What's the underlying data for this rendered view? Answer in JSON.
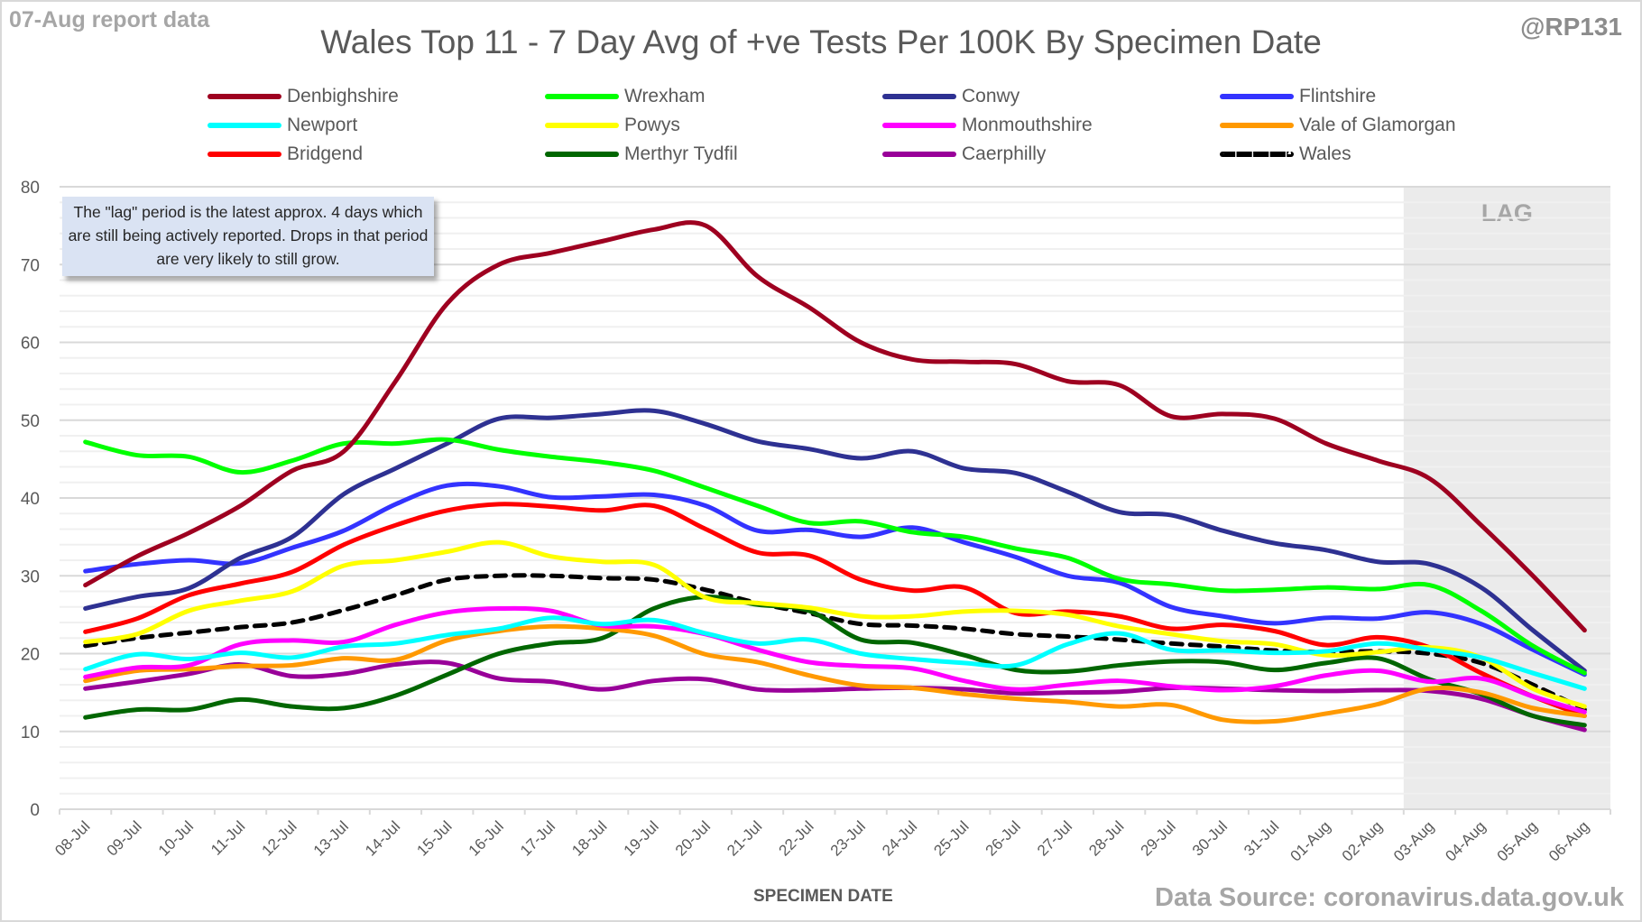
{
  "header": {
    "report_date": "07-Aug report data",
    "handle": "@RP131",
    "source": "Data Source: coronavirus.data.gov.uk"
  },
  "annotation": {
    "text": "The \"lag\" period is the latest approx. 4 days which are still being actively reported.  Drops in that period are very likely to still grow."
  },
  "chart_data": {
    "type": "line",
    "title": "Wales Top 11 - 7 Day Avg of +ve Tests Per 100K By Specimen Date",
    "xlabel": "SPECIMEN DATE",
    "ylabel": "",
    "ylim": [
      0,
      80
    ],
    "yticks": [
      0,
      10,
      20,
      30,
      40,
      50,
      60,
      70,
      80
    ],
    "grid": true,
    "minor_grid_step": 2,
    "legend_position": "top",
    "lag": {
      "label": "LAG",
      "start": "03-Aug",
      "end": "06-Aug",
      "color": "#ebebeb"
    },
    "categories": [
      "08-Jul",
      "09-Jul",
      "10-Jul",
      "11-Jul",
      "12-Jul",
      "13-Jul",
      "14-Jul",
      "15-Jul",
      "16-Jul",
      "17-Jul",
      "18-Jul",
      "19-Jul",
      "20-Jul",
      "21-Jul",
      "22-Jul",
      "23-Jul",
      "24-Jul",
      "25-Jul",
      "26-Jul",
      "27-Jul",
      "28-Jul",
      "29-Jul",
      "30-Jul",
      "31-Jul",
      "01-Aug",
      "02-Aug",
      "03-Aug",
      "04-Aug",
      "05-Aug",
      "06-Aug"
    ],
    "series": [
      {
        "name": "Denbighshire",
        "color": "#9e0020",
        "dashed": false,
        "values": [
          28.8,
          32.5,
          35.5,
          39.0,
          43.5,
          46.0,
          55.0,
          65.0,
          70.0,
          71.5,
          73.0,
          74.5,
          75.0,
          68.5,
          64.5,
          60.0,
          57.8,
          57.5,
          57.2,
          55.0,
          54.5,
          50.5,
          50.8,
          50.2,
          47.0,
          44.8,
          42.5,
          36.5,
          30.0,
          23.0
        ]
      },
      {
        "name": "Wrexham",
        "color": "#00ff00",
        "dashed": false,
        "values": [
          47.2,
          45.5,
          45.3,
          43.3,
          44.8,
          47.0,
          47.0,
          47.5,
          46.2,
          45.3,
          44.6,
          43.5,
          41.3,
          39.0,
          36.8,
          37.0,
          35.6,
          35.0,
          33.5,
          32.3,
          29.6,
          28.9,
          28.1,
          28.2,
          28.5,
          28.3,
          28.8,
          25.5,
          21.0,
          17.5
        ]
      },
      {
        "name": "Conwy",
        "color": "#2e3192",
        "dashed": false,
        "values": [
          25.8,
          27.3,
          28.4,
          32.3,
          35.0,
          40.5,
          43.8,
          47.0,
          50.2,
          50.3,
          50.8,
          51.2,
          49.5,
          47.3,
          46.3,
          45.1,
          46.0,
          43.8,
          43.2,
          40.8,
          38.2,
          37.8,
          35.8,
          34.2,
          33.3,
          31.8,
          31.5,
          28.5,
          23.0,
          17.8
        ]
      },
      {
        "name": "Flintshire",
        "color": "#3333ff",
        "dashed": false,
        "values": [
          30.6,
          31.5,
          32.0,
          31.6,
          33.6,
          35.8,
          39.2,
          41.6,
          41.5,
          40.1,
          40.2,
          40.4,
          39.0,
          35.8,
          35.9,
          35.0,
          36.2,
          34.3,
          32.4,
          30.0,
          29.1,
          26.0,
          24.8,
          23.9,
          24.6,
          24.5,
          25.3,
          23.8,
          20.5,
          17.3
        ]
      },
      {
        "name": "Newport",
        "color": "#00ffff",
        "dashed": false,
        "values": [
          18.0,
          19.9,
          19.3,
          20.1,
          19.5,
          20.9,
          21.3,
          22.4,
          23.2,
          24.6,
          23.8,
          24.3,
          22.6,
          21.3,
          21.8,
          20.0,
          19.3,
          18.8,
          18.5,
          21.2,
          22.6,
          20.5,
          20.4,
          20.1,
          20.3,
          21.3,
          20.5,
          19.5,
          17.5,
          15.5
        ]
      },
      {
        "name": "Powys",
        "color": "#ffff00",
        "dashed": false,
        "values": [
          21.5,
          22.5,
          25.5,
          26.8,
          28.0,
          31.3,
          32.0,
          33.1,
          34.3,
          32.5,
          31.8,
          31.4,
          27.2,
          26.5,
          25.9,
          24.8,
          24.8,
          25.4,
          25.5,
          25.0,
          23.5,
          22.5,
          21.6,
          21.2,
          19.8,
          20.2,
          20.8,
          19.5,
          15.5,
          13.2
        ]
      },
      {
        "name": "Monmouthshire",
        "color": "#ff00ff",
        "dashed": false,
        "values": [
          17.0,
          18.2,
          18.5,
          21.2,
          21.7,
          21.5,
          23.7,
          25.3,
          25.8,
          25.5,
          23.6,
          23.5,
          22.5,
          20.5,
          18.9,
          18.4,
          18.1,
          16.5,
          15.4,
          16.0,
          16.5,
          15.8,
          15.3,
          15.8,
          17.2,
          17.8,
          16.4,
          16.8,
          14.5,
          12.5
        ]
      },
      {
        "name": "Vale of Glamorgan",
        "color": "#ff9900",
        "dashed": false,
        "values": [
          16.5,
          17.8,
          18.0,
          18.4,
          18.5,
          19.4,
          19.2,
          21.7,
          22.9,
          23.5,
          23.2,
          22.3,
          19.9,
          18.9,
          17.2,
          15.9,
          15.6,
          14.8,
          14.2,
          13.8,
          13.2,
          13.4,
          11.5,
          11.3,
          12.3,
          13.5,
          15.5,
          15.0,
          13.0,
          12.0
        ]
      },
      {
        "name": "Bridgend",
        "color": "#ff0000",
        "dashed": false,
        "values": [
          22.8,
          24.5,
          27.5,
          29.0,
          30.5,
          34.0,
          36.5,
          38.4,
          39.2,
          38.9,
          38.4,
          39.0,
          36.0,
          33.0,
          32.6,
          29.5,
          28.1,
          28.5,
          25.2,
          25.4,
          24.8,
          23.2,
          23.7,
          22.9,
          21.1,
          22.1,
          20.8,
          17.5,
          14.5,
          12.0
        ]
      },
      {
        "name": "Merthyr Tydfil",
        "color": "#006600",
        "dashed": false,
        "values": [
          11.8,
          12.8,
          12.8,
          14.1,
          13.2,
          13.0,
          14.6,
          17.3,
          20.0,
          21.3,
          22.0,
          25.8,
          27.3,
          26.3,
          25.5,
          21.8,
          21.4,
          19.8,
          17.9,
          17.7,
          18.5,
          19.0,
          18.9,
          17.9,
          18.8,
          19.4,
          16.7,
          14.8,
          12.0,
          10.8
        ]
      },
      {
        "name": "Caerphilly",
        "color": "#990099",
        "dashed": false,
        "values": [
          15.5,
          16.4,
          17.4,
          18.6,
          17.1,
          17.4,
          18.6,
          18.8,
          16.8,
          16.4,
          15.4,
          16.5,
          16.7,
          15.4,
          15.3,
          15.5,
          15.6,
          15.4,
          14.9,
          15.0,
          15.1,
          15.6,
          15.5,
          15.3,
          15.2,
          15.3,
          15.2,
          14.2,
          12.0,
          10.2
        ]
      },
      {
        "name": "Wales",
        "color": "#000000",
        "dashed": true,
        "values": [
          21.0,
          22.0,
          22.7,
          23.4,
          24.0,
          25.6,
          27.5,
          29.5,
          30.0,
          30.0,
          29.7,
          29.5,
          28.2,
          26.5,
          25.2,
          23.8,
          23.6,
          23.2,
          22.5,
          22.2,
          21.8,
          21.3,
          20.9,
          20.4,
          20.2,
          20.3,
          20.0,
          18.8,
          16.0,
          12.8
        ]
      }
    ]
  }
}
